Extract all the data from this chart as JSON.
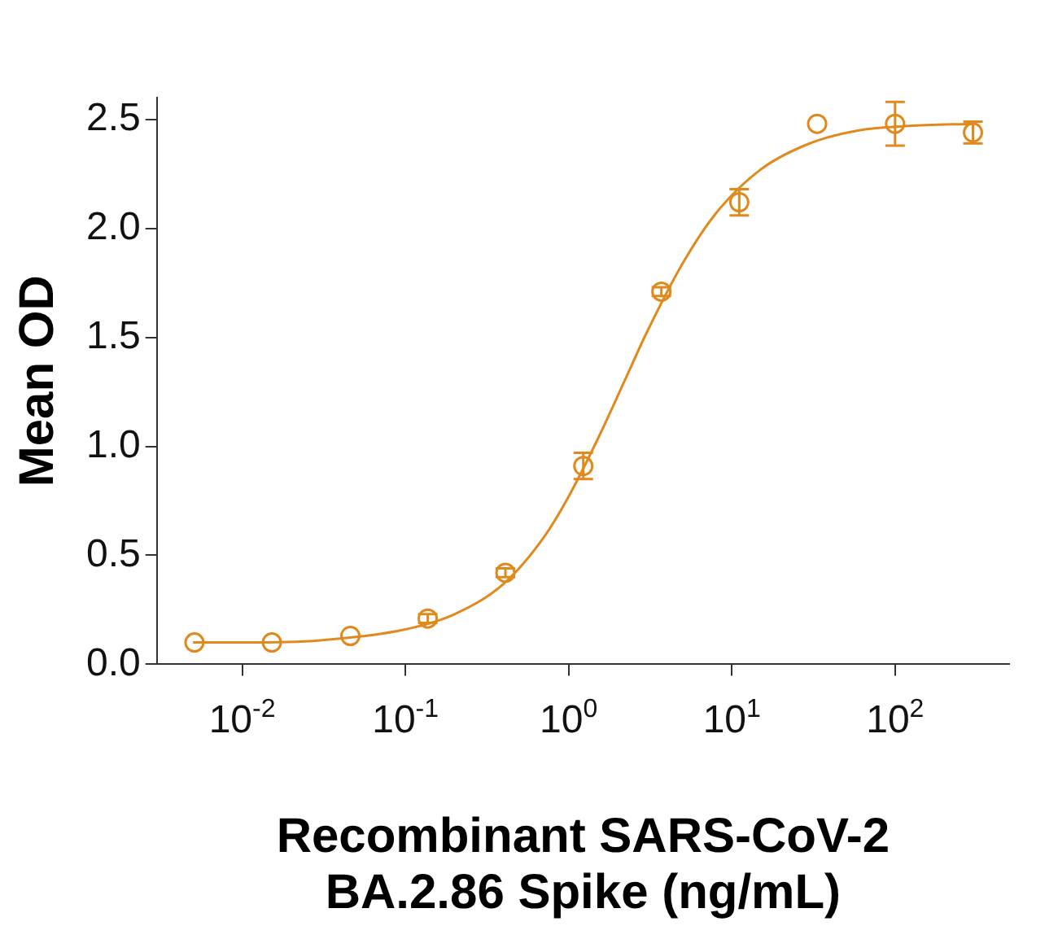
{
  "chart_data": {
    "type": "scatter",
    "xlabel": "Recombinant SARS-CoV-2\nBA.2.86 Spike (ng/mL)",
    "ylabel": "Mean OD",
    "log": "x",
    "grid": false,
    "legend": false,
    "marker": "circle",
    "xlim": [
      0.003,
      500
    ],
    "xticks": [
      {
        "value": 0.01,
        "label": "10$^{-2}$"
      },
      {
        "value": 0.1,
        "label": "10$^{-1}$"
      },
      {
        "value": 1,
        "label": "10$^{0}$"
      },
      {
        "value": 10,
        "label": "10$^{1}$"
      },
      {
        "value": 100,
        "label": "10$^{2}$"
      }
    ],
    "ylim": [
      0,
      2.6
    ],
    "yticks": [
      {
        "value": 0,
        "label": "0.0"
      },
      {
        "value": 0.5,
        "label": "0.5"
      },
      {
        "value": 1,
        "label": "1.0"
      },
      {
        "value": 1.5,
        "label": "1.5"
      },
      {
        "value": 2,
        "label": "2.0"
      },
      {
        "value": 2.5,
        "label": "2.5"
      }
    ],
    "series": [
      {
        "color": "#e08a1e",
        "x": [
          0.0051,
          0.0152,
          0.046,
          0.137,
          0.41,
          1.23,
          3.7,
          11.1,
          33.3,
          100,
          300
        ],
        "values": [
          0.1,
          0.1,
          0.13,
          0.21,
          0.42,
          0.91,
          1.71,
          2.12,
          2.48,
          2.48,
          2.44
        ],
        "errors": [
          null,
          null,
          null,
          0.02,
          0.02,
          0.06,
          0.02,
          0.06,
          null,
          0.1,
          0.05
        ]
      },
      {
        "type": "line",
        "color": "#e08a1e",
        "marker": "none",
        "x": [
          0.005,
          0.01,
          0.03,
          0.1,
          0.2,
          0.4,
          0.7,
          1,
          1.5,
          2.2,
          3,
          5,
          8,
          15,
          30,
          60,
          120,
          300
        ],
        "values": [
          0.1,
          0.1,
          0.11,
          0.16,
          0.23,
          0.37,
          0.58,
          0.77,
          1.03,
          1.3,
          1.52,
          1.84,
          2.07,
          2.27,
          2.39,
          2.45,
          2.47,
          2.48
        ]
      }
    ]
  }
}
